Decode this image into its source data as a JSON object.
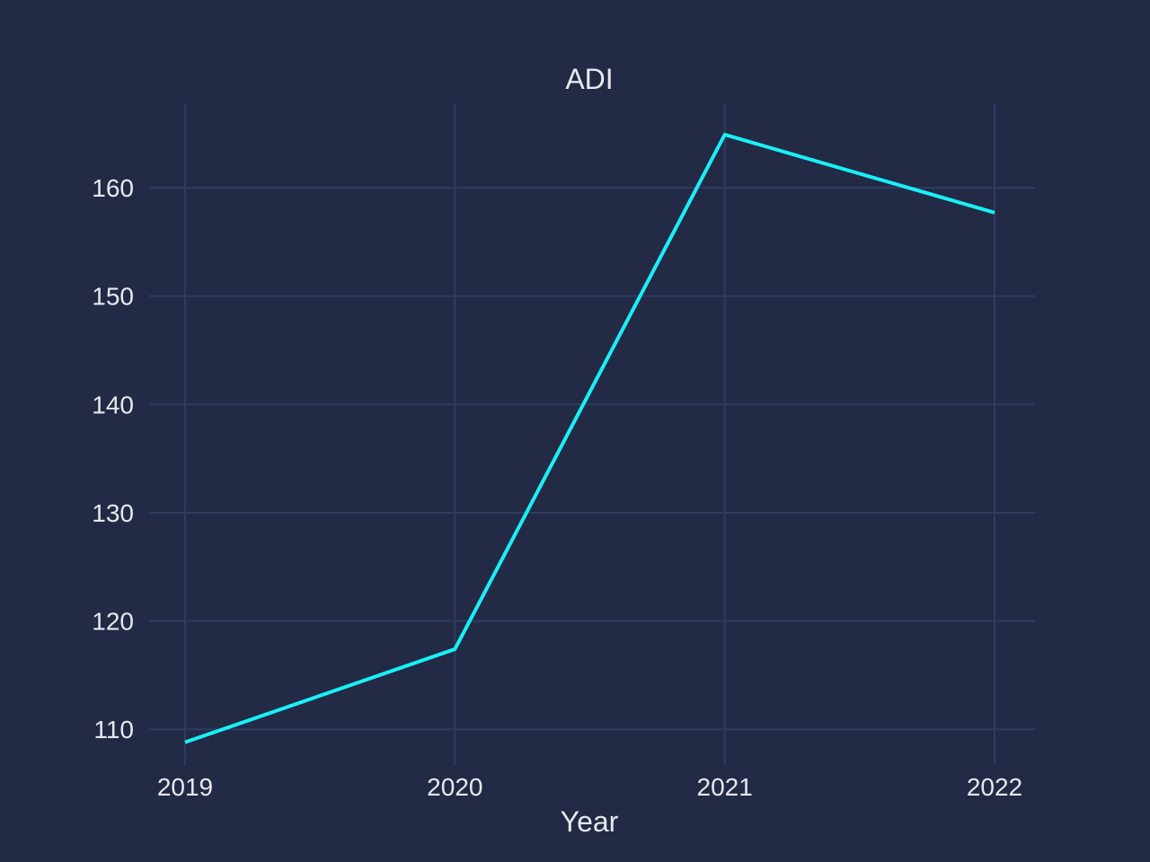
{
  "colors": {
    "background": "#222a46",
    "plot_background": "#222a46",
    "grid": "#2f3b63",
    "line": "#19f0f5",
    "text": "#e8e8ee"
  },
  "chart_data": {
    "type": "line",
    "title": "ADI",
    "xlabel": "Year",
    "ylabel": "",
    "x": [
      "2019",
      "2020",
      "2021",
      "2022"
    ],
    "series": [
      {
        "values": [
          108.8,
          117.4,
          164.9,
          157.7
        ]
      }
    ],
    "ylim": [
      106.7,
      167.8
    ],
    "yticks": [
      110,
      120,
      130,
      140,
      150,
      160
    ],
    "grid": true,
    "legend": "none"
  }
}
